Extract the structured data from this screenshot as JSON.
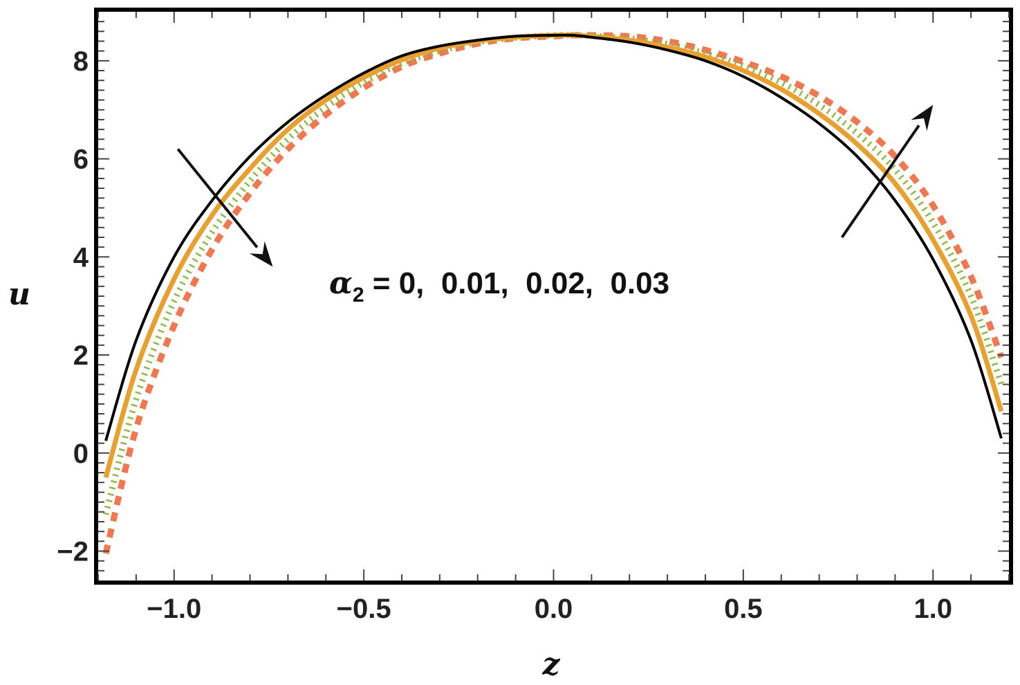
{
  "chart_data": {
    "type": "line",
    "title": "",
    "xlabel": "z",
    "ylabel": "u",
    "xlim": [
      -1.2,
      1.2
    ],
    "ylim": [
      -2.6,
      9.0
    ],
    "x_ticks": [
      -1.0,
      -0.5,
      0.0,
      0.5,
      1.0
    ],
    "x_tick_labels": [
      "−1.0",
      "−0.5",
      "0.0",
      "0.5",
      "1.0"
    ],
    "y_ticks": [
      -2,
      0,
      2,
      4,
      6,
      8
    ],
    "y_tick_labels": [
      "−2",
      "0",
      "2",
      "4",
      "6",
      "8"
    ],
    "grid": false,
    "annotation": {
      "symbol": "α",
      "subscript": "2",
      "text": " = 0,  0.01,  0.02,  0.03"
    },
    "series": [
      {
        "color": "#000000",
        "style": "solid",
        "x": [
          -1.18,
          -1.1,
          -1.0,
          -0.9,
          -0.8,
          -0.7,
          -0.6,
          -0.5,
          -0.4,
          -0.3,
          -0.2,
          -0.1,
          0.0,
          0.05,
          0.1,
          0.2,
          0.3,
          0.4,
          0.5,
          0.6,
          0.7,
          0.8,
          0.9,
          1.0,
          1.1,
          1.18
        ],
        "y": [
          0.25,
          2.3,
          4.0,
          5.15,
          6.05,
          6.75,
          7.3,
          7.75,
          8.1,
          8.3,
          8.42,
          8.5,
          8.52,
          8.52,
          8.48,
          8.38,
          8.22,
          8.0,
          7.68,
          7.25,
          6.72,
          6.05,
          5.15,
          3.95,
          2.3,
          0.3
        ]
      },
      {
        "color": "#E8A030",
        "style": "solid",
        "x": [
          -1.18,
          -1.1,
          -1.0,
          -0.9,
          -0.8,
          -0.7,
          -0.6,
          -0.5,
          -0.4,
          -0.3,
          -0.2,
          -0.1,
          0.0,
          0.05,
          0.1,
          0.2,
          0.3,
          0.4,
          0.5,
          0.6,
          0.7,
          0.8,
          0.9,
          1.0,
          1.1,
          1.18
        ],
        "y": [
          -0.5,
          1.7,
          3.55,
          4.85,
          5.8,
          6.6,
          7.2,
          7.66,
          8.02,
          8.26,
          8.4,
          8.48,
          8.52,
          8.52,
          8.5,
          8.42,
          8.28,
          8.08,
          7.8,
          7.42,
          6.92,
          6.3,
          5.5,
          4.35,
          2.8,
          0.85
        ]
      },
      {
        "color": "#8DB848",
        "style": "dotted",
        "x": [
          -1.18,
          -1.1,
          -1.0,
          -0.9,
          -0.8,
          -0.7,
          -0.6,
          -0.5,
          -0.4,
          -0.3,
          -0.2,
          -0.1,
          0.0,
          0.05,
          0.1,
          0.2,
          0.3,
          0.4,
          0.5,
          0.6,
          0.7,
          0.8,
          0.9,
          1.0,
          1.1,
          1.18
        ],
        "y": [
          -1.25,
          1.1,
          3.1,
          4.5,
          5.55,
          6.4,
          7.05,
          7.56,
          7.95,
          8.2,
          8.38,
          8.47,
          8.52,
          8.52,
          8.51,
          8.46,
          8.34,
          8.15,
          7.9,
          7.56,
          7.1,
          6.52,
          5.78,
          4.7,
          3.2,
          1.4
        ]
      },
      {
        "color": "#F07850",
        "style": "dashed",
        "x": [
          -1.18,
          -1.1,
          -1.0,
          -0.9,
          -0.8,
          -0.7,
          -0.6,
          -0.5,
          -0.4,
          -0.3,
          -0.2,
          -0.1,
          0.0,
          0.05,
          0.1,
          0.2,
          0.3,
          0.4,
          0.5,
          0.6,
          0.7,
          0.8,
          0.9,
          1.0,
          1.1,
          1.18
        ],
        "y": [
          -2.05,
          0.5,
          2.6,
          4.15,
          5.3,
          6.2,
          6.9,
          7.45,
          7.88,
          8.15,
          8.35,
          8.46,
          8.5,
          8.52,
          8.52,
          8.5,
          8.4,
          8.22,
          7.98,
          7.68,
          7.28,
          6.75,
          6.05,
          5.05,
          3.6,
          1.95
        ]
      }
    ],
    "arrows": [
      {
        "from": [
          -0.99,
          6.2
        ],
        "to": [
          -0.74,
          3.8
        ]
      },
      {
        "from": [
          0.76,
          4.4
        ],
        "to": [
          1.0,
          7.1
        ]
      }
    ]
  }
}
